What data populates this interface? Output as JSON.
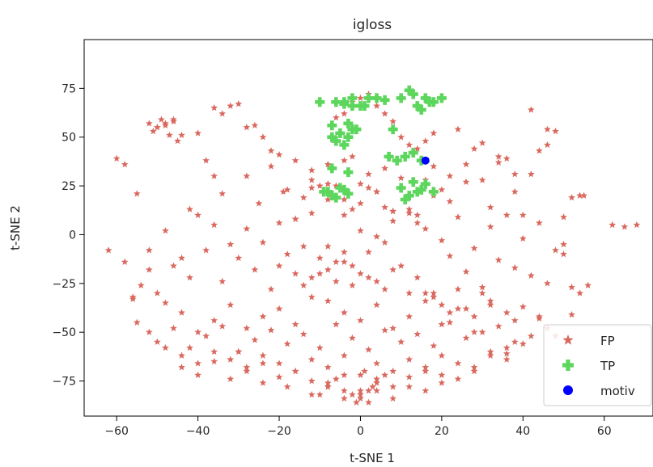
{
  "chart_data": {
    "type": "scatter",
    "title": "igloss",
    "xlabel": "t-SNE 1",
    "ylabel": "t-SNE 2",
    "xlim": [
      -68,
      72
    ],
    "ylim": [
      -93,
      100
    ],
    "xticks": [
      -60,
      -40,
      -20,
      0,
      20,
      40,
      60
    ],
    "yticks": [
      -75,
      -50,
      -25,
      0,
      25,
      50,
      75
    ],
    "xtick_labels": [
      "−60",
      "−40",
      "−20",
      "0",
      "20",
      "40",
      "60"
    ],
    "ytick_labels": [
      "−75",
      "−50",
      "−25",
      "0",
      "25",
      "50",
      "75"
    ],
    "grid": false,
    "legend_position": "lower-right",
    "series": [
      {
        "name": "FP",
        "marker": "star",
        "color": "#d9695f",
        "x": [
          -60,
          -58,
          -55,
          -52,
          -50,
          -48,
          -46,
          -44,
          -42,
          -40,
          -38,
          -36,
          -34,
          -32,
          -30,
          -28,
          -26,
          -24,
          -22,
          -20,
          -18,
          -16,
          -14,
          -12,
          -10,
          -8,
          -6,
          -4,
          -2,
          0,
          2,
          4,
          6,
          8,
          10,
          12,
          14,
          16,
          18,
          20,
          22,
          24,
          26,
          28,
          30,
          32,
          34,
          36,
          38,
          40,
          42,
          44,
          46,
          48,
          50,
          52,
          54,
          56,
          62,
          65,
          68,
          -52,
          -50,
          -48,
          -46,
          -51,
          -49,
          -47,
          -45,
          -36,
          -34,
          -28,
          -25,
          -22,
          -19,
          -16,
          -12,
          -8,
          -4,
          -2,
          2,
          6,
          10,
          14,
          18,
          22,
          26,
          30,
          34,
          38,
          42,
          46,
          50,
          -56,
          -52,
          -48,
          -44,
          -40,
          -36,
          -32,
          -28,
          -24,
          -20,
          -16,
          -12,
          -8,
          -4,
          0,
          4,
          8,
          12,
          16,
          20,
          24,
          28,
          32,
          36,
          40,
          44,
          48,
          55,
          -58,
          -54,
          -50,
          -46,
          -42,
          -38,
          -34,
          -30,
          -26,
          -22,
          -18,
          -14,
          -10,
          -6,
          -2,
          2,
          6,
          10,
          14,
          18,
          22,
          26,
          30,
          34,
          38,
          42,
          46,
          50,
          54,
          -62,
          -55,
          -48,
          -44,
          -40,
          -36,
          -32,
          -28,
          -24,
          -20,
          -16,
          -12,
          -8,
          -4,
          0,
          4,
          8,
          12,
          16,
          20,
          24,
          28,
          32,
          36,
          40,
          44,
          48,
          52,
          -56,
          -50,
          -46,
          -42,
          -38,
          -34,
          -30,
          -26,
          -22,
          -18,
          -14,
          -10,
          -6,
          -2,
          2,
          6,
          10,
          14,
          18,
          22,
          26,
          30,
          34,
          36,
          38,
          42,
          46,
          52,
          -52,
          -48,
          -44,
          -40,
          -36,
          -32,
          -28,
          -24,
          -20,
          -16,
          -12,
          -8,
          -4,
          0,
          4,
          8,
          12,
          16,
          20,
          24,
          28,
          32,
          36,
          40,
          44,
          -44,
          -40,
          -36,
          -32,
          -28,
          -24,
          -20,
          -16,
          -12,
          -8,
          -4,
          0,
          4,
          8,
          12,
          16,
          20,
          24,
          28,
          32,
          36,
          38,
          -30,
          -24,
          -18,
          -12,
          -8,
          -4,
          0,
          2,
          4,
          8,
          12,
          16,
          20,
          -8,
          -4,
          -2,
          0,
          2,
          4,
          -6,
          -10,
          6,
          -1,
          1,
          3,
          -12,
          -8,
          -4,
          0,
          4,
          8,
          12,
          16,
          18,
          20,
          22,
          24,
          26,
          28,
          30,
          32,
          -6,
          -4,
          -2,
          0,
          2,
          4,
          6,
          8,
          10,
          12,
          14,
          16,
          18,
          -20,
          -16,
          -12,
          -8,
          -4,
          0,
          4,
          8,
          -14,
          -10,
          -6,
          -2,
          2,
          6
        ],
        "y": [
          39,
          36,
          21,
          -18,
          55,
          57,
          59,
          51,
          13,
          52,
          38,
          30,
          21,
          66,
          67,
          55,
          56,
          50,
          43,
          41,
          23,
          38,
          19,
          33,
          25,
          36,
          25,
          38,
          40,
          26,
          31,
          22,
          34,
          12,
          24,
          11,
          6,
          28,
          35,
          23,
          30,
          54,
          36,
          44,
          47,
          14,
          37,
          39,
          31,
          10,
          64,
          43,
          54,
          53,
          -10,
          19,
          20,
          -26,
          5,
          4,
          5,
          57,
          55,
          56,
          58,
          53,
          59,
          51,
          48,
          65,
          62,
          30,
          16,
          35,
          22,
          8,
          28,
          26,
          18,
          13,
          24,
          14,
          29,
          10,
          20,
          17,
          27,
          28,
          40,
          22,
          31,
          46,
          9,
          -33,
          -8,
          2,
          -12,
          10,
          5,
          -5,
          3,
          -4,
          6,
          8,
          11,
          -6,
          -9,
          2,
          -1,
          7,
          13,
          3,
          -3,
          9,
          -7,
          4,
          10,
          -2,
          6,
          -8,
          20,
          -14,
          -26,
          -30,
          -16,
          -22,
          -8,
          -24,
          -12,
          -18,
          -28,
          -10,
          -6,
          -20,
          -14,
          -26,
          -9,
          -4,
          -16,
          -22,
          -30,
          -11,
          -19,
          -27,
          -13,
          -17,
          -21,
          -25,
          -5,
          -30,
          -8,
          -45,
          -35,
          -40,
          -50,
          -44,
          -36,
          -48,
          -42,
          -38,
          -46,
          -32,
          -34,
          -40,
          -44,
          -36,
          -48,
          -42,
          -30,
          -46,
          -38,
          -50,
          -34,
          -40,
          -37,
          -43,
          -52,
          -27,
          -32,
          -55,
          -48,
          -58,
          -52,
          -47,
          -60,
          -54,
          -49,
          -56,
          -51,
          -58,
          -46,
          -53,
          -59,
          -49,
          -55,
          -51,
          -57,
          -45,
          -53,
          -50,
          -47,
          -61,
          -44,
          -52,
          -48,
          -41,
          -50,
          -58,
          -62,
          -66,
          -60,
          -64,
          -68,
          -62,
          -66,
          -70,
          -64,
          -68,
          -62,
          -72,
          -66,
          -70,
          -64,
          -68,
          -62,
          -66,
          -70,
          -60,
          -64,
          -56,
          -42,
          -68,
          -72,
          -65,
          -74,
          -70,
          -76,
          -73,
          -70,
          -75,
          -78,
          -72,
          -80,
          -74,
          -78,
          -73,
          -70,
          -76,
          -74,
          -68,
          -62,
          -58,
          -55,
          -60,
          -66,
          -78,
          -82,
          -76,
          -84,
          -82,
          -86,
          -80,
          -84,
          -78,
          -80,
          -72,
          -78,
          -80,
          -82,
          -84,
          -80,
          -76,
          -74,
          -82,
          -72,
          -86,
          -70,
          -78,
          24,
          18,
          10,
          16,
          22,
          12,
          -30,
          -34,
          -32,
          -36,
          -40,
          -28,
          -38,
          -42,
          -30,
          -36,
          60,
          62,
          68,
          70,
          72,
          66,
          62,
          58,
          50,
          46,
          44,
          48,
          52,
          -16,
          -20,
          -22,
          -18,
          -14,
          -20,
          -24,
          -18,
          -26,
          -12,
          -24,
          -16,
          -22,
          -28
        ]
      },
      {
        "name": "TP",
        "marker": "plus",
        "color": "#5cd65c",
        "x": [
          -10,
          -6,
          -4,
          -2,
          0,
          2,
          4,
          -2,
          -4,
          1,
          6,
          10,
          12,
          14,
          16,
          18,
          20,
          13,
          15,
          17,
          -7,
          -5,
          -3,
          -2,
          -6,
          -4,
          -1,
          -7,
          -3,
          8,
          7,
          9,
          11,
          13,
          15,
          -9,
          -7,
          -5,
          -3,
          -8,
          -6,
          -4,
          10,
          12,
          14,
          16,
          18,
          11,
          15,
          13,
          -7,
          -3
        ],
        "y": [
          68,
          68,
          68,
          70,
          66,
          70,
          70,
          66,
          67,
          66,
          69,
          70,
          74,
          66,
          70,
          68,
          70,
          72,
          64,
          68,
          56,
          52,
          50,
          54,
          48,
          46,
          54,
          50,
          57,
          54,
          40,
          38,
          40,
          42,
          38,
          22,
          20,
          24,
          21,
          22,
          19,
          23,
          24,
          20,
          22,
          26,
          22,
          18,
          23,
          27,
          34,
          32
        ]
      },
      {
        "name": "motiv",
        "marker": "circle",
        "color": "#0000ff",
        "x": [
          16
        ],
        "y": [
          38
        ]
      }
    ]
  }
}
